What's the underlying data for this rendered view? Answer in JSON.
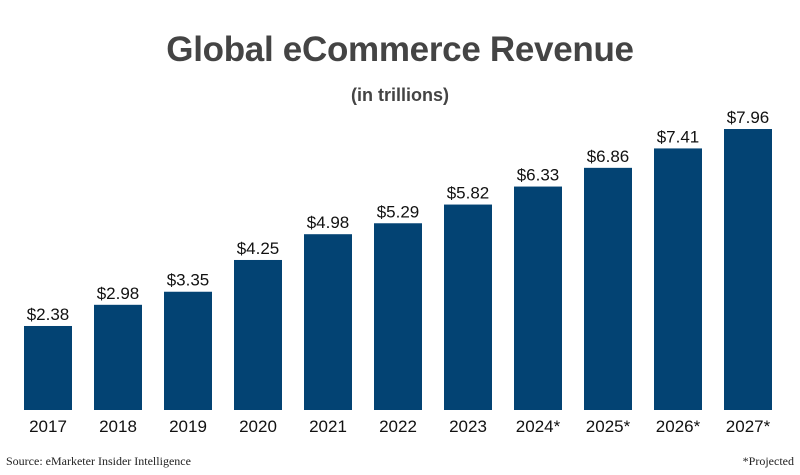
{
  "chart_data": {
    "type": "bar",
    "title": "Global eCommerce Revenue",
    "subtitle": "(in trillions)",
    "xlabel": "",
    "ylabel": "",
    "categories": [
      "2017",
      "2018",
      "2019",
      "2020",
      "2021",
      "2022",
      "2023",
      "2024*",
      "2025*",
      "2026*",
      "2027*"
    ],
    "values": [
      2.38,
      2.98,
      3.35,
      4.25,
      4.98,
      5.29,
      5.82,
      6.33,
      6.86,
      7.41,
      7.96
    ],
    "data_labels": [
      "$2.38",
      "$2.98",
      "$3.35",
      "$4.25",
      "$4.98",
      "$5.29",
      "$5.82",
      "$6.33",
      "$6.86",
      "$7.41",
      "$7.96"
    ],
    "ylim": [
      0,
      8
    ],
    "grid": false,
    "legend": "none",
    "bar_color": "#034373"
  },
  "source": "Source: eMarketer Insider Intelligence",
  "footnote": "*Projected"
}
